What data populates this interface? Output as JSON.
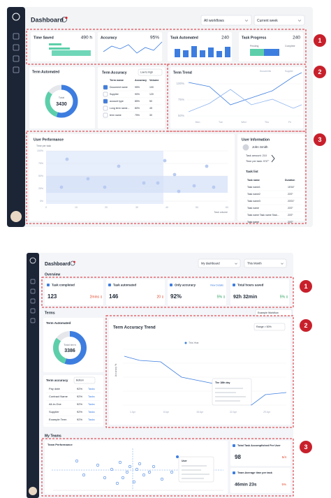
{
  "top": {
    "header": {
      "title": "Dashboard",
      "filters": [
        "All workflows",
        "Current week"
      ]
    },
    "kpis": [
      {
        "label": "Time Saved",
        "value": "490 h"
      },
      {
        "label": "Accuracy",
        "value": "95%"
      },
      {
        "label": "Task Automated",
        "value": "240"
      },
      {
        "label": "Task Progress",
        "value": "240",
        "legend": [
          "Pending",
          "Complete"
        ]
      }
    ],
    "term_automated": {
      "title": "Term Automated",
      "center_label": "Total",
      "center_value": "3430"
    },
    "term_accuracy": {
      "title": "Term Accuracy",
      "sort": "Low to high",
      "columns": [
        "Term name",
        "Accuracy",
        "Volume"
      ],
      "rows": [
        [
          "Document name",
          "95%",
          "100"
        ],
        [
          "Supplier",
          "90%",
          "120"
        ],
        [
          "account type",
          "85%",
          "50"
        ],
        [
          "Long term name...",
          "80%",
          "45"
        ],
        [
          "term name",
          "75%",
          "30"
        ]
      ]
    },
    "term_trend": {
      "title": "Term Trend",
      "legend": [
        "Documents",
        "Supplier"
      ],
      "y_labels": [
        "100%",
        "75%",
        "50%"
      ],
      "x_labels": [
        "Mon",
        "Tue",
        "Wed",
        "Thu",
        "Fri"
      ]
    },
    "user_performance": {
      "title": "User Performance",
      "y_axis": "Time per task",
      "x_axis": "Task volume",
      "y_labels": [
        "100%",
        "75%",
        "50%",
        "25%",
        "0%"
      ],
      "x_labels": [
        "0",
        "10",
        "20",
        "30",
        "40",
        "50",
        "60"
      ]
    },
    "user_information": {
      "title": "User Information",
      "name": "John Smith",
      "task_amount": "Task amount:   210",
      "time_per_task": "Time per task:   5'37\""
    },
    "task_list": {
      "title": "Task list",
      "columns": [
        "Task name",
        "Duration"
      ],
      "rows": [
        [
          "Task name1",
          "15'16\""
        ],
        [
          "Task name2",
          "23'2\""
        ],
        [
          "Task name3",
          "23'21\""
        ],
        [
          "Task name",
          "23'2\""
        ],
        [
          "Task name Task name Task...",
          "23'2\""
        ],
        [
          "Task name",
          "23'2\""
        ]
      ]
    },
    "markers": [
      "1",
      "2",
      "3"
    ]
  },
  "bottom": {
    "header": {
      "title": "Dashboard",
      "filters": [
        "My dashboard",
        "This Month"
      ]
    },
    "overview": "Overview",
    "kpis": [
      {
        "label": "Task completed",
        "value": "123",
        "delta": "2mins",
        "trend": "down"
      },
      {
        "label": "Task automated",
        "value": "146",
        "delta": "20",
        "trend": "down"
      },
      {
        "label": "Only accuracy",
        "value": "92%",
        "link": "View Details",
        "delta": "5%",
        "trend": "up"
      },
      {
        "label": "Total hours saved",
        "value": "92h 32min",
        "delta": "5%",
        "trend": "up"
      }
    ],
    "terms": {
      "title": "Terms",
      "workflow": "Example Workflow"
    },
    "term_automated": {
      "title": "Term Automated",
      "center_label": "Total term",
      "center_value": "3386"
    },
    "term_accuracy": {
      "title": "Term accuracy",
      "sort": "Bottom",
      "rows": [
        [
          "Pay date",
          "92%",
          "Tasks"
        ],
        [
          "Contract Name",
          "92%",
          "Tasks"
        ],
        [
          "All-in-One",
          "92%",
          "Tasks"
        ],
        [
          "Supplier",
          "92%",
          "Tasks"
        ],
        [
          "Example Term",
          "92%",
          "Tasks"
        ]
      ]
    },
    "trend": {
      "title": "Term Accuracy Trend",
      "filter": "Range > 50%",
      "legend": "This Year",
      "y_axis": "Accuracy %",
      "tooltip": "The 18th day",
      "x_labels": [
        "1 Apr",
        "8 Apr",
        "15 Apr",
        "22 Apr",
        "29 Apr"
      ]
    },
    "teams": {
      "title": "My Teams",
      "chart_title": "Team Performance",
      "tooltip": "User",
      "cards": [
        {
          "label": "Total Task Accomplished Per User",
          "value": "98",
          "delta": "5/4"
        },
        {
          "label": "Team Average time per task",
          "value": "46min 23s",
          "delta": "5%"
        }
      ]
    },
    "markers": [
      "1",
      "2",
      "3"
    ]
  }
}
